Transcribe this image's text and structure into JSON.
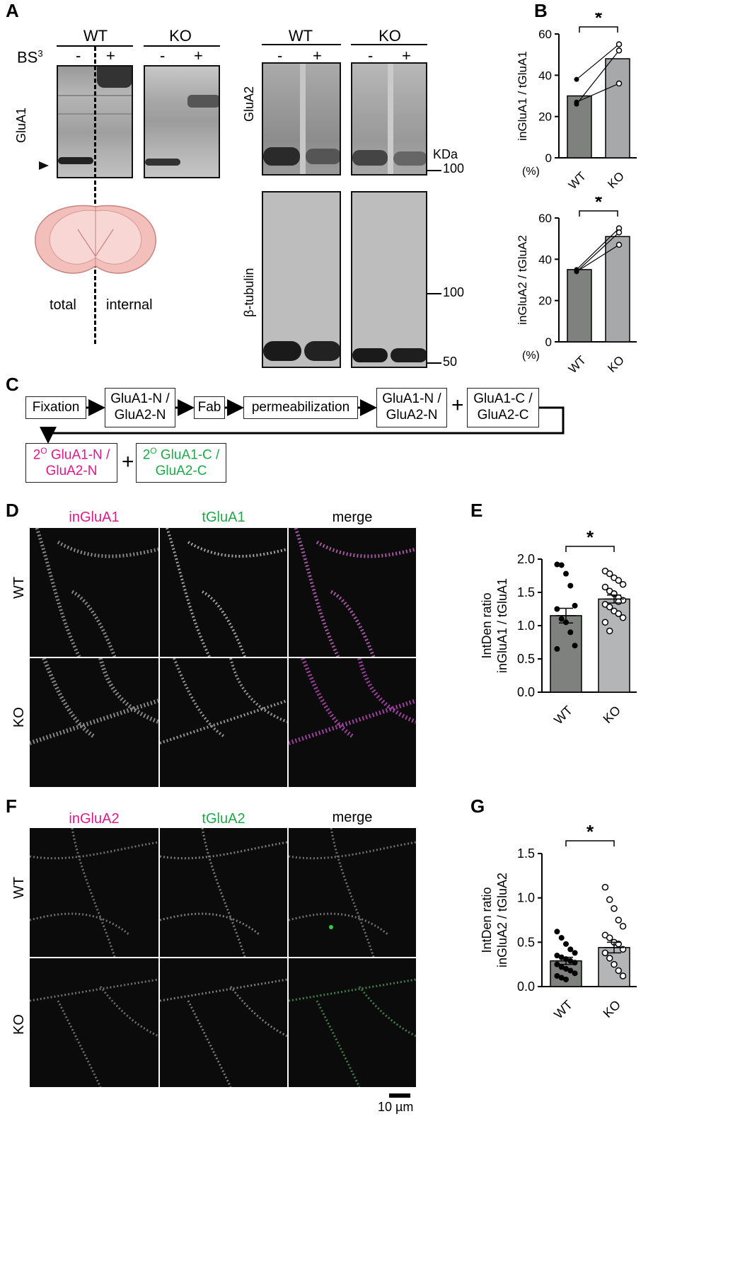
{
  "panels": {
    "A": "A",
    "B": "B",
    "C": "C",
    "D": "D",
    "E": "E",
    "F": "F",
    "G": "G"
  },
  "panelA": {
    "wt": "WT",
    "ko": "KO",
    "bs3": "BS",
    "bs3_sup": "3",
    "minus": "-",
    "plus": "+",
    "glua1": "GluA1",
    "glua2": "GluA2",
    "tubulin": "β-tubulin",
    "kda": "KDa",
    "m100": "100",
    "m100b": "100",
    "m50": "50",
    "total": "total",
    "internal": "internal"
  },
  "panelB": {
    "star": "*",
    "top_ylabel": "inGluA1 / tGluA1",
    "bot_ylabel": "inGluA2 / tGluA2",
    "pct": "(%)"
  },
  "panelC": {
    "fixation": "Fixation",
    "ab1_l1": "GluA1-N /",
    "ab1_l2": "GluA2-N",
    "fab": "Fab",
    "perm": "permeabilization",
    "ab2_l1": "GluA1-N /",
    "ab2_l2": "GluA2-N",
    "ab3_l1": "GluA1-C /",
    "ab3_l2": "GluA2-C",
    "plus": "+",
    "sec1_l1": "GluA1-N /",
    "sec1_l2": "GluA2-N",
    "sec2_l1": "GluA1-C /",
    "sec2_l2": "GluA2-C",
    "two": "2",
    "deg": "O",
    "colors": {
      "magenta": "#e0198a",
      "green": "#1fa84a"
    }
  },
  "panelD": {
    "c1": "inGluA1",
    "c2": "tGluA1",
    "c3": "merge",
    "r1": "WT",
    "r2": "KO"
  },
  "panelF": {
    "c1": "inGluA2",
    "c2": "tGluA2",
    "c3": "merge",
    "r1": "WT",
    "r2": "KO",
    "scale": "10 µm"
  },
  "panelE": {
    "ylabel1": "IntDen ratio",
    "ylabel2": "inGluA1 / tGluA1",
    "star": "*"
  },
  "panelG": {
    "ylabel1": "IntDen ratio",
    "ylabel2": "inGluA2 / tGluA2",
    "star": "*"
  },
  "chart_data": [
    {
      "type": "bar",
      "panel": "B-top",
      "categories": [
        "WT",
        "KO"
      ],
      "values": [
        30,
        48
      ],
      "paired_points": [
        [
          38,
          55
        ],
        [
          26,
          52
        ],
        [
          27,
          36
        ]
      ],
      "ylabel": "inGluA1 / tGluA1",
      "ylim": [
        0,
        60
      ],
      "yticks": [
        "0",
        "20",
        "40",
        "60"
      ],
      "bar_colors": [
        "#7f817f",
        "#a6a8a9"
      ]
    },
    {
      "type": "bar",
      "panel": "B-bottom",
      "categories": [
        "WT",
        "KO"
      ],
      "values": [
        35,
        51
      ],
      "paired_points": [
        [
          35,
          55
        ],
        [
          34,
          53
        ],
        [
          34,
          47
        ]
      ],
      "ylabel": "inGluA2 / tGluA2",
      "ylim": [
        0,
        60
      ],
      "yticks": [
        "0",
        "20",
        "40",
        "60"
      ],
      "bar_colors": [
        "#7f817f",
        "#a6a8a9"
      ]
    },
    {
      "type": "bar",
      "panel": "E",
      "categories": [
        "WT",
        "KO"
      ],
      "values": [
        1.15,
        1.4
      ],
      "errors": [
        0.11,
        0.06
      ],
      "points": [
        [
          1.92,
          1.91,
          1.78,
          1.6,
          1.3,
          1.25,
          1.1,
          1.05,
          0.9,
          0.7,
          0.65
        ],
        [
          1.82,
          1.78,
          1.72,
          1.68,
          1.62,
          1.58,
          1.52,
          1.48,
          1.42,
          1.38,
          1.32,
          1.28,
          1.22,
          1.18,
          1.12,
          1.05,
          0.92,
          1.48,
          1.36
        ]
      ],
      "ylabel": "IntDen ratio inGluA1 / tGluA1",
      "ylim": [
        0,
        2.0
      ],
      "yticks": [
        "0.0",
        "0.5",
        "1.0",
        "1.5",
        "2.0"
      ],
      "bar_colors": [
        "#7f817f",
        "#b3b5b7"
      ]
    },
    {
      "type": "bar",
      "panel": "G",
      "categories": [
        "WT",
        "KO"
      ],
      "values": [
        0.29,
        0.44
      ],
      "errors": [
        0.04,
        0.06
      ],
      "points": [
        [
          0.62,
          0.55,
          0.48,
          0.42,
          0.38,
          0.35,
          0.33,
          0.31,
          0.29,
          0.27,
          0.25,
          0.22,
          0.2,
          0.18,
          0.15,
          0.12,
          0.1,
          0.08
        ],
        [
          1.12,
          0.98,
          0.88,
          0.75,
          0.68,
          0.58,
          0.55,
          0.5,
          0.48,
          0.42,
          0.38,
          0.32,
          0.25,
          0.18,
          0.12
        ]
      ],
      "ylabel": "IntDen ratio inGluA2 / tGluA2",
      "ylim": [
        0,
        1.5
      ],
      "yticks": [
        "0.0",
        "0.5",
        "1.0",
        "1.5"
      ],
      "bar_colors": [
        "#7f817f",
        "#b3b5b7"
      ]
    }
  ]
}
